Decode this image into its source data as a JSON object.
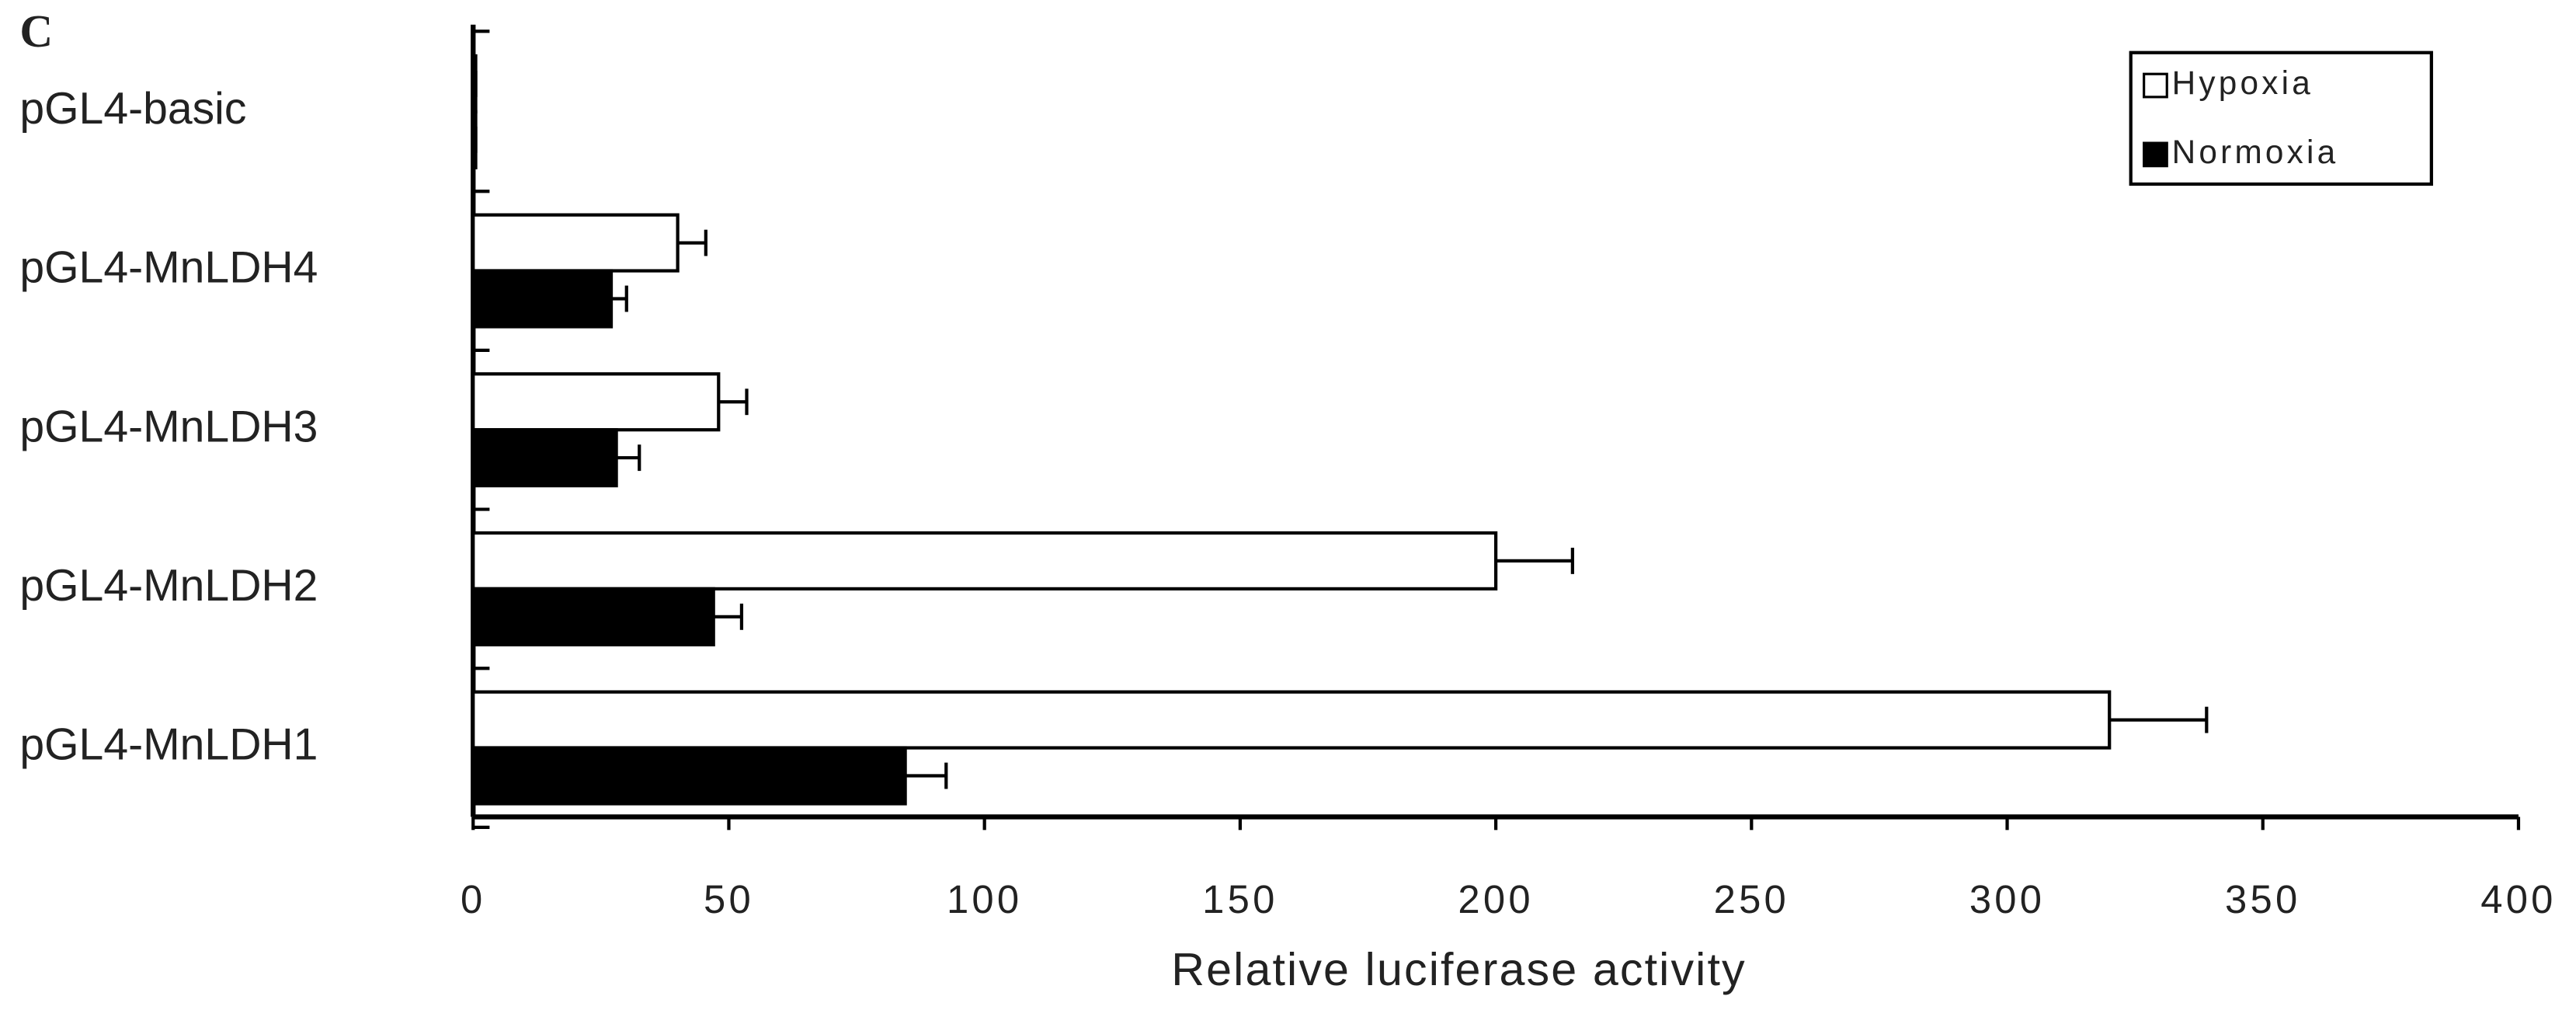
{
  "chart_data": {
    "type": "bar",
    "orientation": "horizontal",
    "panel_label": "C",
    "x_label": "Relative luciferase activity",
    "categories": [
      "pGL4-basic",
      "pGL4-MnLDH4",
      "pGL4-MnLDH3",
      "pGL4-MnLDH2",
      "pGL4-MnLDH1"
    ],
    "series": [
      {
        "name": "Hypoxia",
        "color": "#ffffff",
        "values": [
          0.5,
          40,
          48,
          200,
          320
        ],
        "errors": [
          0,
          5.5,
          5.5,
          15,
          19
        ]
      },
      {
        "name": "Normoxia",
        "color": "#000000",
        "values": [
          0.5,
          27,
          28,
          47,
          84.5
        ],
        "errors": [
          0,
          3,
          4.5,
          5.5,
          8
        ]
      }
    ],
    "xlim": [
      0,
      400
    ],
    "xticks": [
      0,
      50,
      100,
      150,
      200,
      250,
      300,
      350,
      400
    ],
    "legend": "upper right"
  }
}
